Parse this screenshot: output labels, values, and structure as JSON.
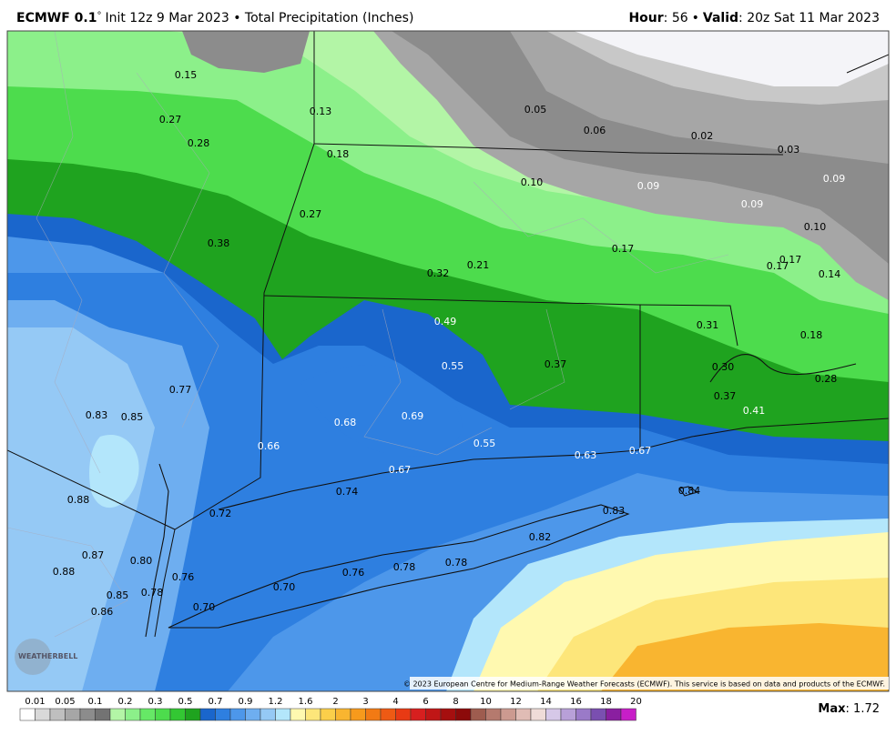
{
  "header": {
    "model": "ECMWF 0.1",
    "degree": "°",
    "title": "Init 12z 9 Mar 2023 • Total Precipitation (Inches)",
    "hour_label": "Hour",
    "hour_value": ": 56",
    "separator": "•",
    "valid_label": "Valid",
    "valid_value": ": 20z Sat 11 Mar 2023"
  },
  "map": {
    "labels": [
      "0.15",
      "0.13",
      "0.27",
      "0.28",
      "0.18",
      "0.27",
      "0.38",
      "0.05",
      "0.06",
      "0.02",
      "0.03",
      "0.10",
      "0.09",
      "0.09",
      "0.09",
      "0.10",
      "0.17",
      "0.17",
      "0.17",
      "0.14",
      "0.21",
      "0.32",
      "0.49",
      "0.31",
      "0.18",
      "0.55",
      "0.37",
      "0.30",
      "0.28",
      "0.37",
      "0.41",
      "0.77",
      "0.83",
      "0.85",
      "0.68",
      "0.69",
      "0.55",
      "0.66",
      "0.63",
      "0.67",
      "0.67",
      "0.74",
      "0.84",
      "0.88",
      "0.72",
      "0.83",
      "0.82",
      "0.87",
      "0.80",
      "0.88",
      "0.76",
      "0.78",
      "0.78",
      "0.76",
      "0.70",
      "0.85",
      "0.78",
      "0.70",
      "0.86"
    ],
    "logo": "WEATHERBELL",
    "copyright": "© 2023 European Centre for Medium-Range Weather Forecasts (ECMWF). This service is based on data and products of the ECMWF."
  },
  "legend": {
    "ticks": [
      "0.01",
      "0.05",
      "0.1",
      "0.2",
      "0.3",
      "0.5",
      "0.7",
      "0.9",
      "1.2",
      "1.6",
      "2",
      "3",
      "4",
      "6",
      "8",
      "10",
      "12",
      "14",
      "16",
      "18",
      "20"
    ],
    "colors": [
      "#ffffff",
      "#d9d9d9",
      "#bfbfbf",
      "#a6a6a6",
      "#8c8c8c",
      "#737373",
      "#b3f5a6",
      "#8cf08a",
      "#66e866",
      "#4ddc4d",
      "#33c733",
      "#1fa31f",
      "#1a66cc",
      "#2e7fe0",
      "#4d97ea",
      "#6eaef0",
      "#95c9f5",
      "#b3e6fb",
      "#fff9b0",
      "#fde67a",
      "#fbcf4a",
      "#f9b530",
      "#f79a1c",
      "#f27a14",
      "#ee5a14",
      "#e83a14",
      "#d71f1f",
      "#c01616",
      "#a50f0f",
      "#8c0a0a",
      "#9e5c4f",
      "#b57a6e",
      "#cc9a90",
      "#e0bcb5",
      "#efdcd8",
      "#d6c8e8",
      "#b8a0d8",
      "#9a7ac8",
      "#7a4fb0",
      "#8a1fa0",
      "#c81ec8"
    ]
  },
  "footer": {
    "max_label": "Max",
    "max_value": ": 1.72"
  }
}
